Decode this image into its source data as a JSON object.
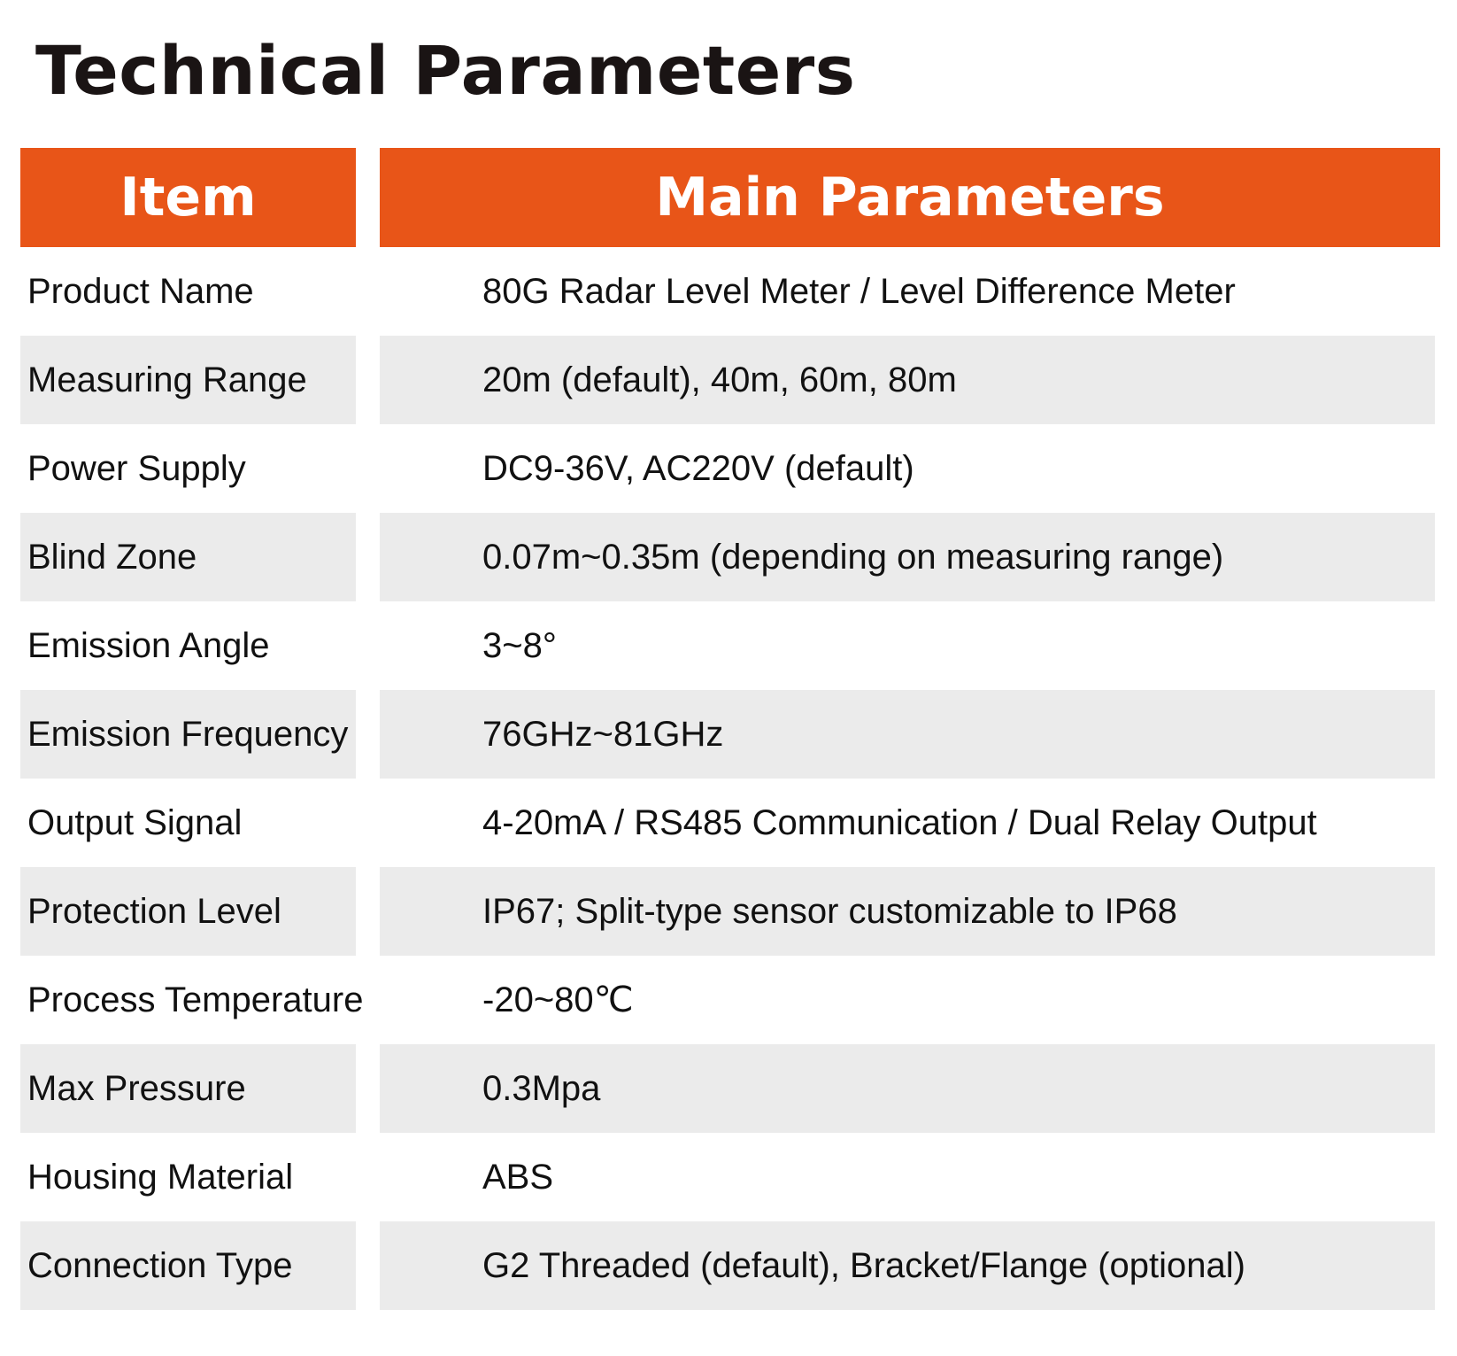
{
  "title": "Technical Parameters",
  "header": {
    "item": "Item",
    "main_parameters": "Main Parameters"
  },
  "colors": {
    "header_bg": "#e85518",
    "row_shade": "#ebebeb"
  },
  "rows": [
    {
      "label": "Product Name",
      "value": "80G Radar Level Meter / Level Difference Meter"
    },
    {
      "label": "Measuring Range",
      "value": "20m (default), 40m, 60m, 80m"
    },
    {
      "label": "Power Supply",
      "value": "DC9-36V, AC220V (default)"
    },
    {
      "label": "Blind Zone",
      "value": "0.07m~0.35m (depending on measuring range)"
    },
    {
      "label": "Emission Angle",
      "value": "3~8°"
    },
    {
      "label": "Emission Frequency",
      "value": "76GHz~81GHz"
    },
    {
      "label": "Output Signal",
      "value": "4-20mA / RS485 Communication / Dual Relay Output"
    },
    {
      "label": "Protection Level",
      "value": "IP67; Split-type sensor customizable to IP68"
    },
    {
      "label": "Process Temperature",
      "value": "-20~80℃"
    },
    {
      "label": "Max Pressure",
      "value": "0.3Mpa"
    },
    {
      "label": "Housing Material",
      "value": "ABS"
    },
    {
      "label": "Connection Type",
      "value": "G2 Threaded (default), Bracket/Flange (optional)"
    }
  ]
}
